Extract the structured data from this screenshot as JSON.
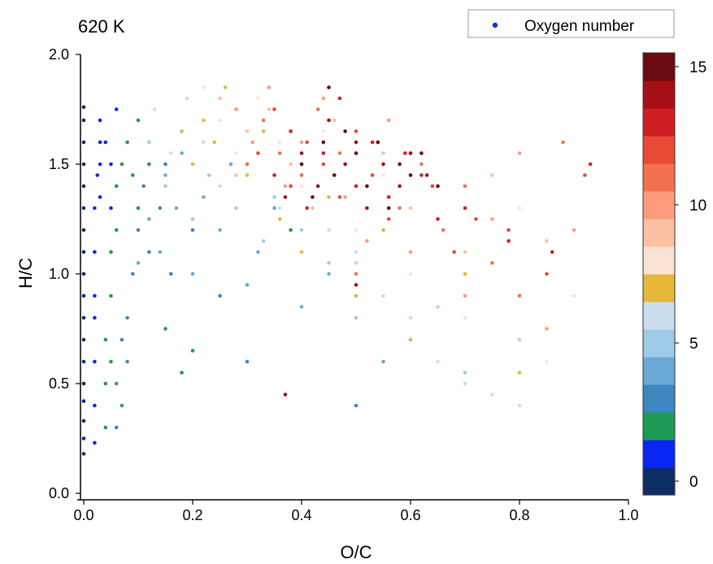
{
  "chart_data": {
    "type": "scatter",
    "title": "620 K",
    "xlabel": "O/C",
    "ylabel": "H/C",
    "xlim": [
      0.0,
      1.0
    ],
    "ylim": [
      0.0,
      2.0
    ],
    "x_ticks": [
      0.0,
      0.2,
      0.4,
      0.6,
      0.8,
      1.0
    ],
    "x_tick_labels": [
      "0.0",
      "0.2",
      "0.4",
      "0.6",
      "0.8",
      "1.0"
    ],
    "y_ticks": [
      0.0,
      0.5,
      1.0,
      1.5,
      2.0
    ],
    "y_tick_labels": [
      "0.0",
      "0.5",
      "1.0",
      "1.5",
      "2.0"
    ],
    "grid": false,
    "legend": {
      "label": "Oxygen number",
      "placement": "top-right",
      "marker_color": "#1530e0"
    },
    "colorbar": {
      "label_values": [
        "0",
        "5",
        "10",
        "15"
      ],
      "level_values": [
        0,
        1,
        2,
        3,
        4,
        5,
        6,
        7,
        8,
        9,
        10,
        11,
        12,
        13,
        14,
        15
      ],
      "colors": [
        "#0d2d63",
        "#0a26f5",
        "#1e9a55",
        "#3d86bf",
        "#6aa9d6",
        "#9ecbe7",
        "#c9dff0",
        "#e7b83a",
        "#fbe3d6",
        "#fcc0a5",
        "#fc9c7d",
        "#f4714f",
        "#e84a35",
        "#cf1f22",
        "#a50f15",
        "#6b0a10"
      ]
    },
    "series": [
      {
        "oxygen_number": 0,
        "color": "#0d2d63",
        "x": [
          0.0,
          0.0,
          0.0,
          0.0,
          0.0,
          0.0,
          0.0,
          0.0,
          0.0,
          0.0,
          0.0,
          0.0,
          0.0,
          0.0,
          0.0,
          0.0,
          0.0,
          0.0
        ],
        "y": [
          0.18,
          0.25,
          0.33,
          0.42,
          0.5,
          0.6,
          0.7,
          0.8,
          0.9,
          1.0,
          1.1,
          1.2,
          1.3,
          1.4,
          1.5,
          1.6,
          1.7,
          1.76
        ]
      },
      {
        "oxygen_number": 1,
        "color": "#0a26f5",
        "x": [
          0.02,
          0.02,
          0.02,
          0.02,
          0.02,
          0.02,
          0.02,
          0.025,
          0.03,
          0.03,
          0.03,
          0.03,
          0.04,
          0.05,
          0.05,
          0.06
        ],
        "y": [
          0.23,
          0.4,
          0.6,
          0.8,
          0.9,
          1.1,
          1.3,
          1.45,
          1.5,
          1.6,
          1.7,
          1.35,
          1.6,
          1.5,
          1.3,
          1.75
        ]
      },
      {
        "oxygen_number": 2,
        "color": "#1e9a55",
        "x": [
          0.04,
          0.04,
          0.04,
          0.05,
          0.05,
          0.05,
          0.06,
          0.06,
          0.07,
          0.08,
          0.09,
          0.1,
          0.1,
          0.12,
          0.15,
          0.18,
          0.2,
          0.38
        ],
        "y": [
          0.3,
          0.5,
          0.7,
          0.6,
          0.9,
          1.1,
          1.2,
          1.4,
          1.5,
          1.6,
          1.45,
          1.3,
          1.7,
          1.5,
          0.75,
          0.55,
          0.65,
          1.2
        ]
      },
      {
        "oxygen_number": 3,
        "color": "#3d86bf",
        "x": [
          0.06,
          0.06,
          0.07,
          0.07,
          0.08,
          0.08,
          0.09,
          0.1,
          0.11,
          0.12,
          0.12,
          0.14,
          0.15,
          0.16,
          0.2,
          0.25,
          0.3,
          0.5
        ],
        "y": [
          0.3,
          0.5,
          0.4,
          0.7,
          0.6,
          0.8,
          1.0,
          1.2,
          1.4,
          1.5,
          1.1,
          1.3,
          1.5,
          1.0,
          1.2,
          0.9,
          0.6,
          0.4
        ]
      },
      {
        "oxygen_number": 4,
        "color": "#6aa9d6",
        "x": [
          0.1,
          0.12,
          0.14,
          0.15,
          0.17,
          0.18,
          0.2,
          0.22,
          0.25,
          0.27,
          0.3,
          0.32,
          0.35,
          0.4,
          0.45,
          0.55
        ],
        "y": [
          1.05,
          1.25,
          1.1,
          1.45,
          1.3,
          1.55,
          1.0,
          1.35,
          1.2,
          1.5,
          0.95,
          1.1,
          1.3,
          0.85,
          1.0,
          0.6
        ]
      },
      {
        "oxygen_number": 5,
        "color": "#9ecbe7",
        "x": [
          0.12,
          0.15,
          0.18,
          0.2,
          0.23,
          0.25,
          0.28,
          0.3,
          0.33,
          0.35,
          0.4,
          0.45,
          0.5,
          0.6,
          0.7
        ],
        "y": [
          1.6,
          1.4,
          1.65,
          1.25,
          1.45,
          1.7,
          1.3,
          1.5,
          1.15,
          1.35,
          1.2,
          1.05,
          0.8,
          0.7,
          0.55
        ]
      },
      {
        "oxygen_number": 6,
        "color": "#c9dff0",
        "x": [
          0.13,
          0.16,
          0.19,
          0.22,
          0.25,
          0.28,
          0.32,
          0.36,
          0.4,
          0.45,
          0.5,
          0.55,
          0.6,
          0.65,
          0.7,
          0.75,
          0.8
        ],
        "y": [
          1.75,
          1.55,
          1.8,
          1.6,
          1.4,
          1.75,
          1.55,
          1.3,
          1.45,
          1.2,
          1.1,
          0.9,
          0.8,
          0.6,
          0.5,
          0.45,
          0.4
        ]
      },
      {
        "oxygen_number": 7,
        "color": "#e7b83a",
        "x": [
          0.18,
          0.2,
          0.22,
          0.24,
          0.26,
          0.3,
          0.33,
          0.36,
          0.4,
          0.45,
          0.5,
          0.55,
          0.6,
          0.7,
          0.8
        ],
        "y": [
          1.65,
          1.5,
          1.7,
          1.6,
          1.85,
          1.45,
          1.65,
          1.25,
          1.1,
          1.35,
          0.9,
          1.2,
          0.7,
          1.0,
          0.55
        ]
      },
      {
        "oxygen_number": 8,
        "color": "#fbe3d6",
        "x": [
          0.22,
          0.25,
          0.28,
          0.32,
          0.36,
          0.4,
          0.44,
          0.5,
          0.55,
          0.6,
          0.65,
          0.7,
          0.75,
          0.8,
          0.85,
          0.9
        ],
        "y": [
          1.85,
          1.7,
          1.55,
          1.8,
          1.6,
          1.4,
          1.65,
          1.2,
          1.45,
          1.0,
          1.25,
          0.8,
          1.05,
          1.3,
          0.6,
          0.9
        ]
      },
      {
        "oxygen_number": 9,
        "color": "#fcc0a5",
        "x": [
          0.25,
          0.28,
          0.3,
          0.34,
          0.38,
          0.42,
          0.46,
          0.5,
          0.55,
          0.6,
          0.65,
          0.7,
          0.75,
          0.8,
          0.85
        ],
        "y": [
          1.8,
          1.45,
          1.65,
          1.75,
          1.5,
          1.3,
          1.7,
          1.05,
          1.55,
          1.3,
          0.85,
          1.1,
          1.45,
          0.7,
          1.15
        ]
      },
      {
        "oxygen_number": 10,
        "color": "#fc9c7d",
        "x": [
          0.28,
          0.31,
          0.34,
          0.37,
          0.4,
          0.44,
          0.48,
          0.52,
          0.56,
          0.6,
          0.65,
          0.7,
          0.75,
          0.8,
          0.85,
          0.9
        ],
        "y": [
          1.75,
          1.6,
          1.85,
          1.4,
          1.6,
          1.8,
          1.35,
          1.15,
          1.7,
          1.1,
          1.4,
          0.9,
          1.25,
          1.55,
          0.75,
          1.2
        ]
      },
      {
        "oxygen_number": 11,
        "color": "#f4714f",
        "x": [
          0.3,
          0.33,
          0.36,
          0.4,
          0.43,
          0.47,
          0.5,
          0.54,
          0.58,
          0.62,
          0.66,
          0.7,
          0.75,
          0.8,
          0.88
        ],
        "y": [
          1.5,
          1.7,
          1.55,
          1.45,
          1.75,
          1.55,
          1.0,
          1.6,
          1.3,
          1.5,
          1.2,
          1.4,
          1.05,
          0.9,
          1.6
        ]
      },
      {
        "oxygen_number": 12,
        "color": "#e84a35",
        "x": [
          0.32,
          0.35,
          0.38,
          0.41,
          0.44,
          0.47,
          0.5,
          0.53,
          0.56,
          0.6,
          0.64,
          0.68,
          0.72,
          0.78,
          0.85,
          0.92
        ],
        "y": [
          1.55,
          1.75,
          1.4,
          1.6,
          1.5,
          1.35,
          1.65,
          1.45,
          1.25,
          1.55,
          1.4,
          1.1,
          1.25,
          1.2,
          1.0,
          1.45
        ]
      },
      {
        "oxygen_number": 13,
        "color": "#cf1f22",
        "x": [
          0.35,
          0.38,
          0.41,
          0.44,
          0.47,
          0.5,
          0.53,
          0.56,
          0.59,
          0.62,
          0.65,
          0.7,
          0.78,
          0.86,
          0.93
        ],
        "y": [
          1.45,
          1.65,
          1.3,
          1.55,
          1.8,
          1.4,
          1.6,
          1.35,
          1.55,
          1.45,
          1.25,
          1.3,
          1.15,
          1.1,
          1.5
        ]
      },
      {
        "oxygen_number": 14,
        "color": "#a50f15",
        "x": [
          0.37,
          0.4,
          0.43,
          0.45,
          0.48,
          0.5,
          0.52,
          0.55,
          0.58,
          0.6,
          0.63,
          0.37,
          0.5
        ],
        "y": [
          1.35,
          1.55,
          1.4,
          1.7,
          1.5,
          1.6,
          1.3,
          1.5,
          1.4,
          1.55,
          1.45,
          0.45,
          0.95
        ]
      },
      {
        "oxygen_number": 15,
        "color": "#6b0a10",
        "x": [
          0.4,
          0.42,
          0.44,
          0.46,
          0.48,
          0.5,
          0.52,
          0.54,
          0.56,
          0.58,
          0.6,
          0.62,
          0.65,
          0.45
        ],
        "y": [
          1.5,
          1.35,
          1.6,
          1.45,
          1.65,
          1.55,
          1.4,
          1.6,
          1.3,
          1.5,
          1.45,
          1.55,
          1.4,
          1.85
        ]
      }
    ]
  }
}
